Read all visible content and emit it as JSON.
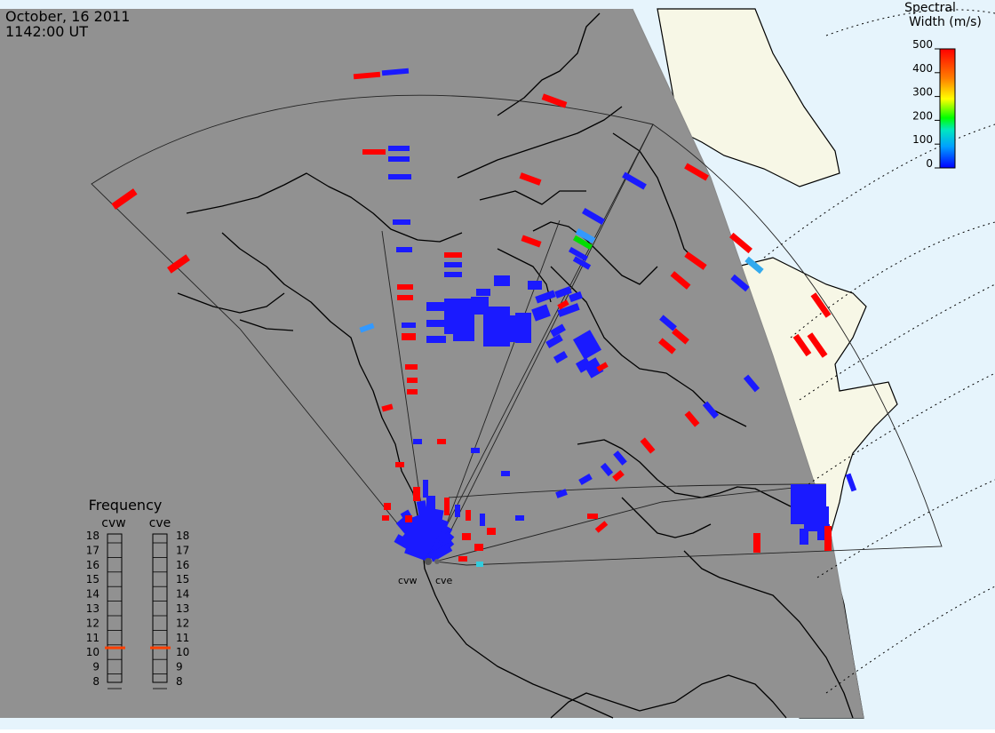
{
  "header": {
    "date": "October, 16 2011",
    "time": "1142:00 UT"
  },
  "colorbar": {
    "title_line1": "Spectral",
    "title_line2": "Width (m/s)",
    "ticks": [
      "500",
      "400",
      "300",
      "200",
      "100",
      "0"
    ],
    "stops": [
      "#ff0000",
      "#ff8000",
      "#ffff00",
      "#00ff00",
      "#00e0e0",
      "#0000ff"
    ]
  },
  "frequency": {
    "title": "Frequency",
    "left_radar": "cvw",
    "right_radar": "cve",
    "labels": [
      "18",
      "17",
      "16",
      "15",
      "14",
      "13",
      "12",
      "11",
      "10",
      "9",
      "8"
    ],
    "cvw_value": 10.8,
    "cve_value": 10.8,
    "marker_color": "#ff4000"
  },
  "radars": {
    "left": "cvw",
    "right": "cve"
  },
  "colors": {
    "night": "#919191",
    "day_land": "#f7f7e6",
    "day_ocean": "#e6f4fc",
    "high_width": "#ff0000",
    "low_width": "#1a1aff",
    "mid_width": "#3399ff"
  }
}
